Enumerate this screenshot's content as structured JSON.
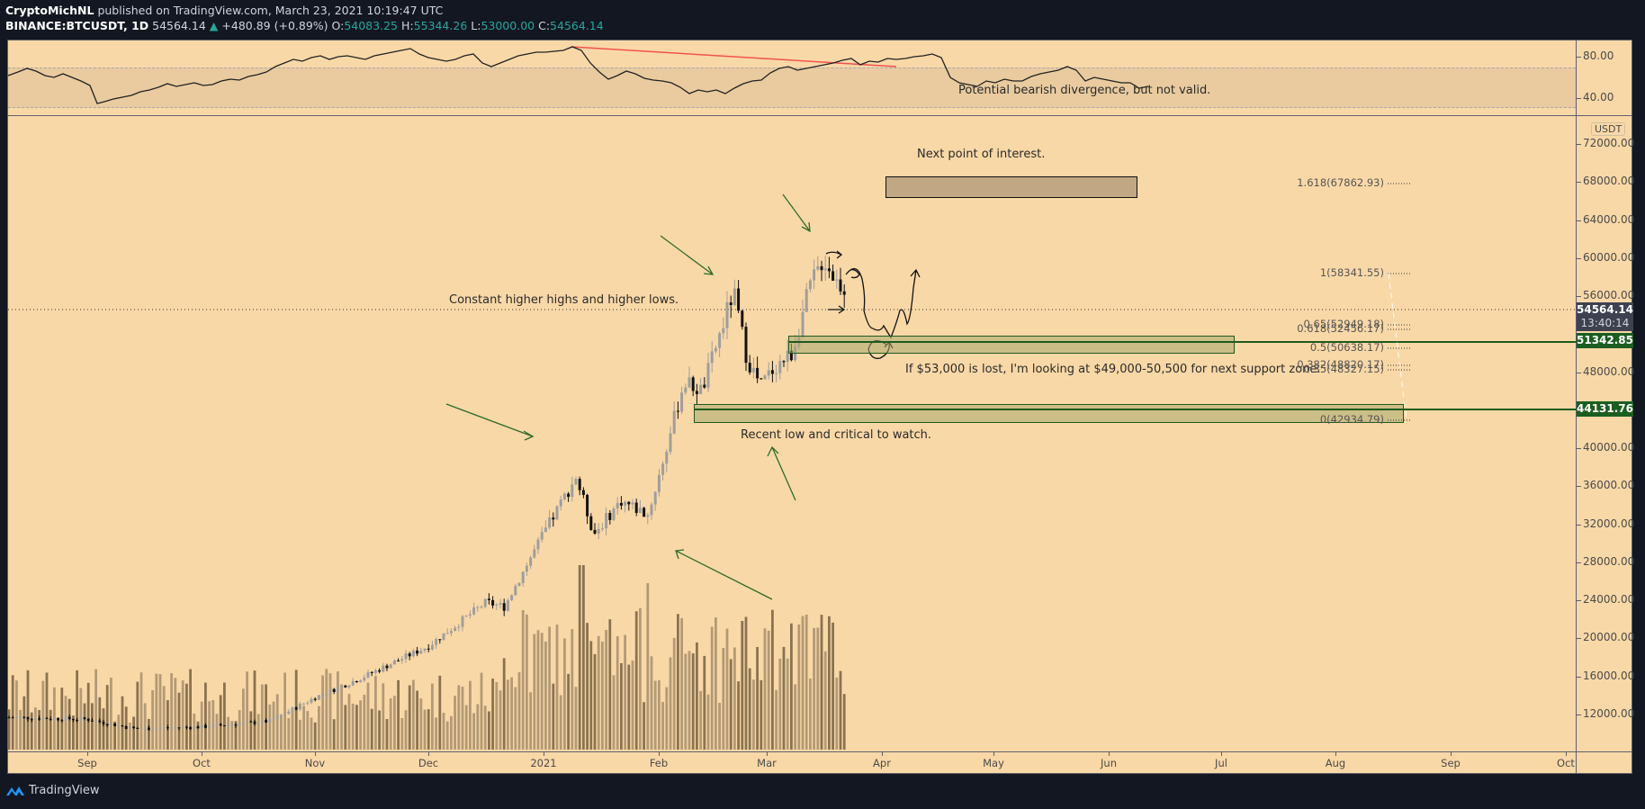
{
  "header": {
    "author": "CryptoMichNL",
    "published": "published on TradingView.com, March 23, 2021 10:19:47 UTC",
    "symbol": "BINANCE:BTCUSDT, 1D",
    "last": "54564.14",
    "change": "+480.89 (+0.89%)",
    "o_label": "O:",
    "o": "54083.25",
    "h_label": "H:",
    "h": "55344.26",
    "l_label": "L:",
    "l": "53000.00",
    "c_label": "C:",
    "c": "54564.14"
  },
  "rsi_pane": {
    "ticks": [
      "80.00",
      "40.00"
    ],
    "annotation": "Potential bearish divergence, but not valid."
  },
  "price_axis": {
    "currency": "USDT",
    "ticks": [
      "72000.00",
      "68000.00",
      "64000.00",
      "60000.00",
      "56000.00",
      "48000.00",
      "40000.00",
      "36000.00",
      "32000.00",
      "28000.00",
      "24000.00",
      "20000.00",
      "16000.00",
      "12000.00"
    ],
    "last_price_tag": "54564.14",
    "countdown": "13:40:14",
    "level_tag_1": "51342.85",
    "level_tag_2": "44131.76"
  },
  "time_axis": {
    "labels": [
      "Sep",
      "Oct",
      "Nov",
      "Dec",
      "2021",
      "Feb",
      "Mar",
      "Apr",
      "May",
      "Jun",
      "Jul",
      "Aug",
      "Sep",
      "Oct"
    ]
  },
  "annotations": {
    "next_poi": "Next point of interest.",
    "higher_highs": "Constant higher highs and higher lows.",
    "support_zone": "If $53,000 is lost, I'm looking at $49,000-50,500 for next support zone.",
    "recent_low": "Recent low and critical to watch."
  },
  "fib_levels": [
    {
      "label": "1.618(67862.93)"
    },
    {
      "label": "1(58341.55)"
    },
    {
      "label": "0.65(52949.18)"
    },
    {
      "label": "0.618(52456.17)"
    },
    {
      "label": "0.5(50638.17)"
    },
    {
      "label": "0.382(48820.17)"
    },
    {
      "label": "0.35(48327.15)"
    },
    {
      "label": "0(42934.79)"
    }
  ],
  "footer": {
    "brand": "TradingView"
  },
  "colors": {
    "background": "#f9d8a7",
    "frame": "#131722",
    "up_candle": "#9e9e9e",
    "down_candle": "#111111",
    "zone_border": "#1e5a1e",
    "divergence_line": "#ef5350",
    "accent_up": "#26a69a"
  },
  "chart_data": {
    "type": "candlestick",
    "title": "BINANCE:BTCUSDT, 1D",
    "xlabel": "",
    "ylabel": "USDT",
    "ylim": [
      8000,
      74000
    ],
    "x_range": [
      "2020-08-11",
      "2021-10-05"
    ],
    "ohlc_last": {
      "open": 54083.25,
      "high": 55344.26,
      "low": 53000.0,
      "close": 54564.14
    },
    "key_prices": {
      "all_time_high_approx": 61700,
      "feb_high_approx": 58300,
      "recent_low_approx": 43000,
      "jan_high_approx": 41900,
      "jan_low_approx": 29000
    },
    "monthly_closes_approx": [
      {
        "x": "Aug 2020",
        "close": 11700
      },
      {
        "x": "Sep 2020",
        "close": 10800
      },
      {
        "x": "Oct 2020",
        "close": 13800
      },
      {
        "x": "Nov 2020",
        "close": 19700
      },
      {
        "x": "Dec 2020",
        "close": 29000
      },
      {
        "x": "Jan 2021",
        "close": 33100
      },
      {
        "x": "Feb 2021",
        "close": 45200
      },
      {
        "x": "Mar 23 2021",
        "close": 54564
      }
    ],
    "horizontal_levels": [
      51342.85,
      44131.76
    ],
    "zones": [
      {
        "name": "next point of interest",
        "from": 66500,
        "to": 68500
      },
      {
        "name": "support zone",
        "from": 49000,
        "to": 50600
      },
      {
        "name": "recent low zone",
        "from": 42900,
        "to": 44400
      }
    ],
    "fibonacci": [
      {
        "ratio": 1.618,
        "price": 67862.93
      },
      {
        "ratio": 1,
        "price": 58341.55
      },
      {
        "ratio": 0.65,
        "price": 52949.18
      },
      {
        "ratio": 0.618,
        "price": 52456.17
      },
      {
        "ratio": 0.5,
        "price": 50638.17
      },
      {
        "ratio": 0.382,
        "price": 48820.17
      },
      {
        "ratio": 0.35,
        "price": 48327.15
      },
      {
        "ratio": 0,
        "price": 42934.79
      }
    ],
    "rsi": {
      "ylim": [
        20,
        100
      ],
      "bands": [
        40,
        80
      ],
      "peaks_approx": [
        87,
        80,
        75
      ],
      "current_approx": 55
    },
    "volume": "shown as bars along bottom, spikes in early Jan and late Jan 2021",
    "grid": false,
    "legend": "none"
  }
}
